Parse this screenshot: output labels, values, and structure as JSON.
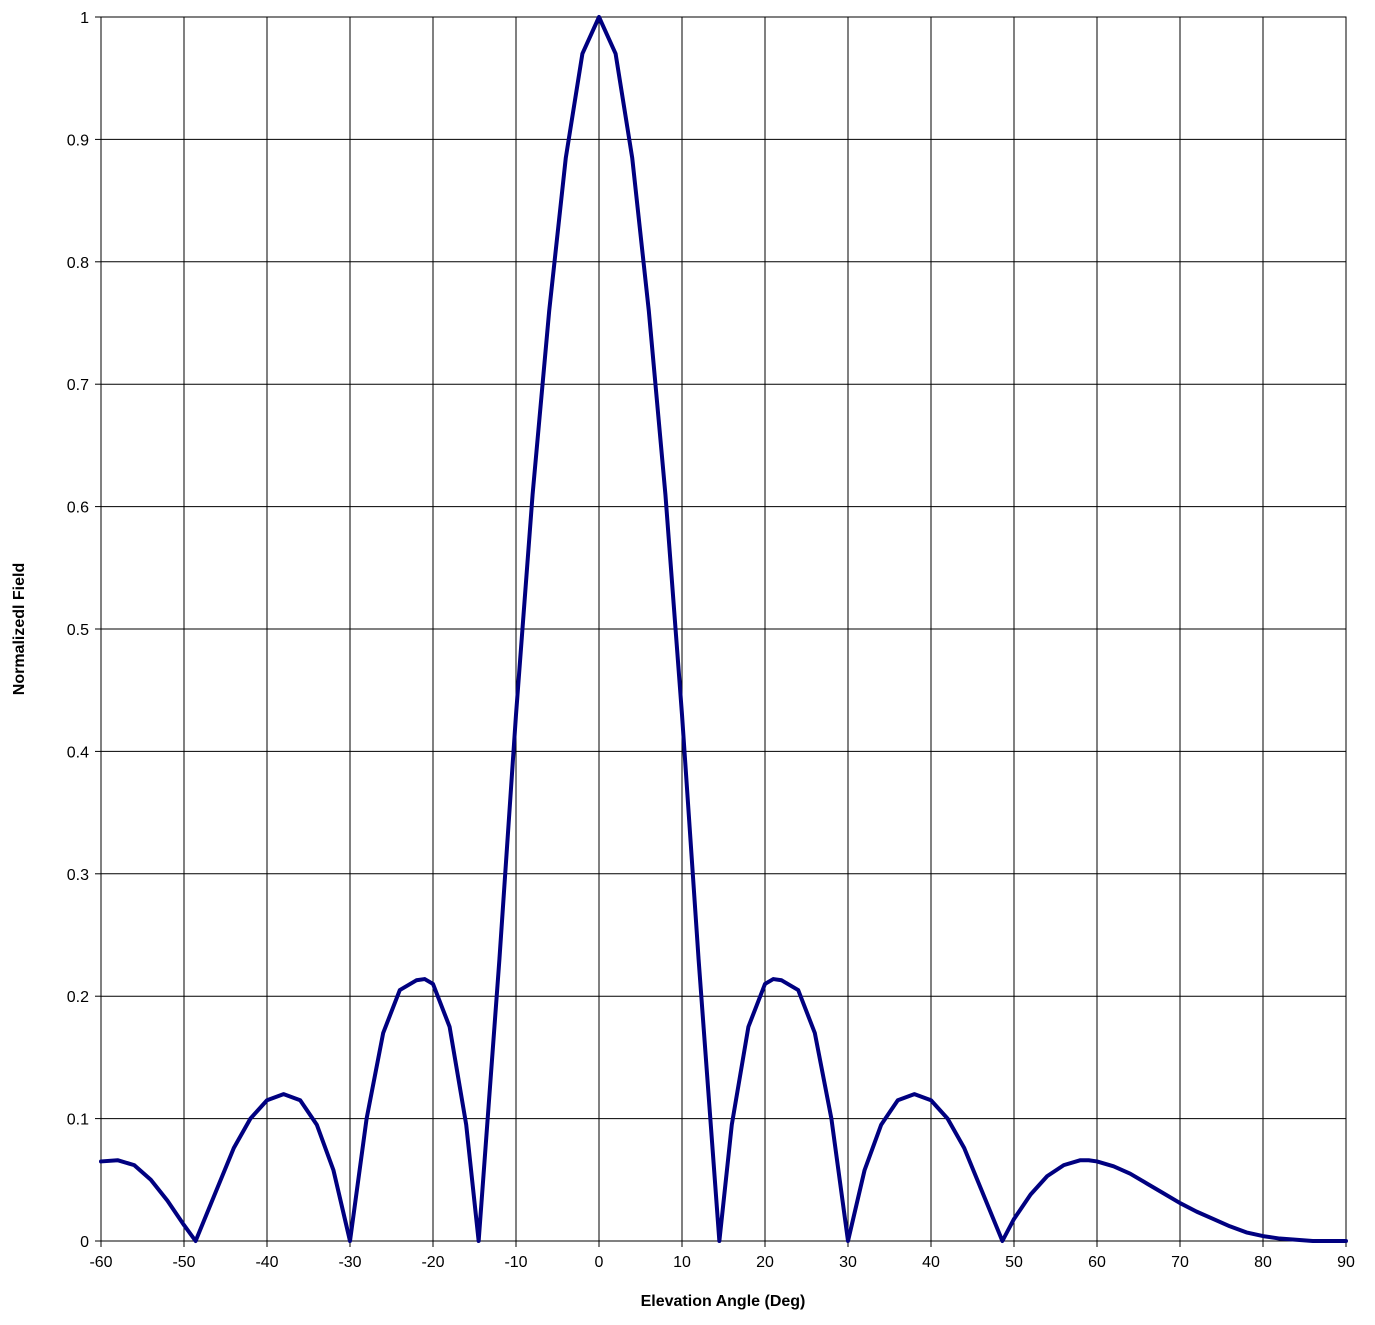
{
  "chart_data": {
    "type": "line",
    "title": "",
    "xlabel": "Elevation Angle (Deg)",
    "ylabel": "Normalizedl Field",
    "xlim": [
      -60,
      90
    ],
    "ylim": [
      0,
      1
    ],
    "xticks": [
      -60,
      -50,
      -40,
      -30,
      -20,
      -10,
      0,
      10,
      20,
      30,
      40,
      50,
      60,
      70,
      80,
      90
    ],
    "yticks": [
      0,
      0.1,
      0.2,
      0.3,
      0.4,
      0.5,
      0.6,
      0.7,
      0.8,
      0.9,
      1
    ],
    "xtick_labels": [
      "-60",
      "-50",
      "-40",
      "-30",
      "-20",
      "-10",
      "0",
      "10",
      "20",
      "30",
      "40",
      "50",
      "60",
      "70",
      "80",
      "90"
    ],
    "ytick_labels": [
      "0",
      "0.1",
      "0.2",
      "0.3",
      "0.4",
      "0.5",
      "0.6",
      "0.7",
      "0.8",
      "0.9",
      "1"
    ],
    "grid": true,
    "legend": "none",
    "line_color": "#000080",
    "series": [
      {
        "x": [
          -60,
          -58,
          -56,
          -54,
          -52,
          -50,
          -48.6,
          -46,
          -44,
          -42,
          -40,
          -38,
          -36,
          -34,
          -32,
          -30,
          -28,
          -26,
          -24,
          -22,
          -21,
          -20,
          -18,
          -16,
          -14.5,
          -12,
          -10,
          -8,
          -6,
          -4,
          -2,
          0,
          2,
          4,
          6,
          8,
          10,
          12,
          14.5,
          16,
          18,
          20,
          21,
          22,
          24,
          26,
          28,
          30,
          32,
          34,
          36,
          38,
          40,
          42,
          44,
          46,
          48.6,
          50,
          52,
          54,
          56,
          58,
          59,
          60,
          62,
          64,
          66,
          68,
          70,
          72,
          74,
          76,
          78,
          80,
          82,
          84,
          86,
          88,
          90
        ],
        "y": [
          0.065,
          0.066,
          0.062,
          0.05,
          0.033,
          0.013,
          0.0,
          0.043,
          0.076,
          0.1,
          0.115,
          0.12,
          0.115,
          0.095,
          0.058,
          0.0,
          0.1,
          0.17,
          0.205,
          0.213,
          0.214,
          0.21,
          0.175,
          0.095,
          0.0,
          0.23,
          0.43,
          0.61,
          0.76,
          0.885,
          0.97,
          1.0,
          0.97,
          0.885,
          0.76,
          0.61,
          0.43,
          0.23,
          0.0,
          0.095,
          0.175,
          0.21,
          0.214,
          0.213,
          0.205,
          0.17,
          0.1,
          0.0,
          0.058,
          0.095,
          0.115,
          0.12,
          0.115,
          0.1,
          0.076,
          0.043,
          0.0,
          0.018,
          0.038,
          0.053,
          0.062,
          0.066,
          0.066,
          0.065,
          0.061,
          0.055,
          0.047,
          0.039,
          0.031,
          0.024,
          0.018,
          0.012,
          0.007,
          0.004,
          0.002,
          0.001,
          0.0,
          0.0,
          0.0
        ]
      }
    ]
  }
}
